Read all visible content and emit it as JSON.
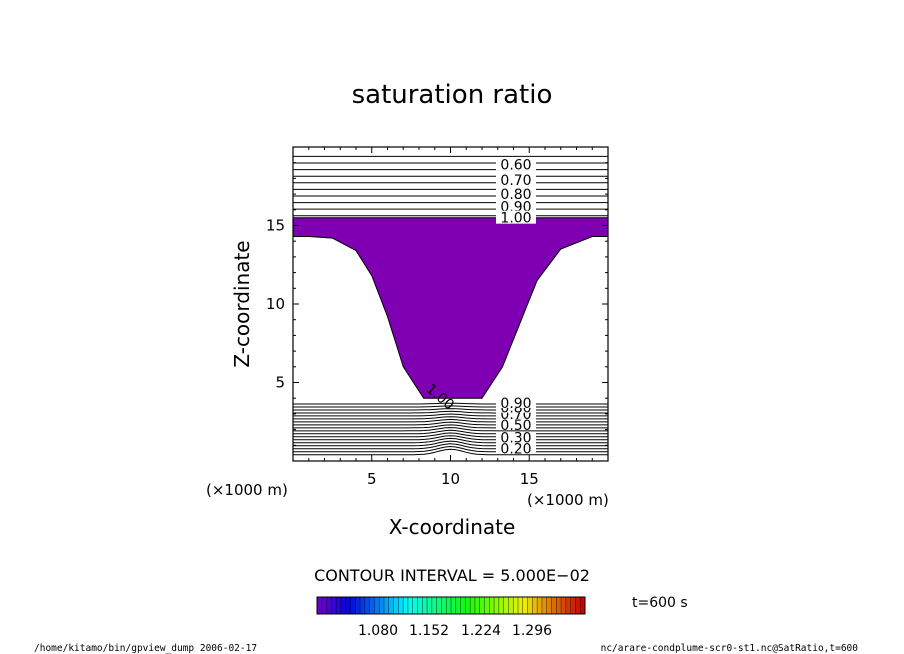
{
  "chart_data": {
    "type": "contour",
    "title": "saturation ratio",
    "xlabel": "X-coordinate",
    "ylabel": "Z-coordinate",
    "x_unit": "(×1000 m)",
    "y_unit": "(×1000 m)",
    "xlim": [
      0,
      20
    ],
    "ylim": [
      0,
      20
    ],
    "xticks": [
      5,
      10,
      15
    ],
    "yticks": [
      5,
      10,
      15
    ],
    "contour_interval_label": "CONTOUR INTERVAL = 5.000E−02",
    "time_label": "t=600 s",
    "upper_contour_labels": [
      {
        "text": "0.60",
        "z": 18.9
      },
      {
        "text": "0.70",
        "z": 17.9
      },
      {
        "text": "0.80",
        "z": 17.0
      },
      {
        "text": "0.90",
        "z": 16.2
      },
      {
        "text": "1.00",
        "z": 15.5
      }
    ],
    "lower_contour_labels": [
      {
        "text": "0.20",
        "z": 0.8
      },
      {
        "text": "0.30",
        "z": 1.5
      },
      {
        "text": "0.50",
        "z": 2.3
      },
      {
        "text": "0.70",
        "z": 3.0
      },
      {
        "text": "0.80",
        "z": 3.4
      },
      {
        "text": "0.90",
        "z": 3.7
      }
    ],
    "region_label": {
      "text": "1.00",
      "x": 8.4,
      "z": 4.5
    },
    "shaded_region": {
      "level": 1.0,
      "boundary": [
        [
          0,
          15.5
        ],
        [
          20,
          15.5
        ],
        [
          20,
          14.3
        ],
        [
          19,
          14.3
        ],
        [
          17,
          13.5
        ],
        [
          15.5,
          11.5
        ],
        [
          14.3,
          8.5
        ],
        [
          13.3,
          6
        ],
        [
          12,
          4
        ],
        [
          8.3,
          4
        ],
        [
          7,
          6
        ],
        [
          6,
          9.2
        ],
        [
          5,
          11.8
        ],
        [
          4,
          13.4
        ],
        [
          2.5,
          14.2
        ],
        [
          1,
          14.3
        ],
        [
          0,
          14.3
        ]
      ]
    },
    "colorbar": {
      "ticks": [
        "1.080",
        "1.152",
        "1.224",
        "1.296"
      ]
    },
    "fill_color": "#7f00b2"
  },
  "footer": {
    "left": "/home/kitamo/bin/gpview_dump  2006-02-17",
    "right": "nc/arare-condplume-scr0-st1.nc@SatRatio,t=600"
  }
}
